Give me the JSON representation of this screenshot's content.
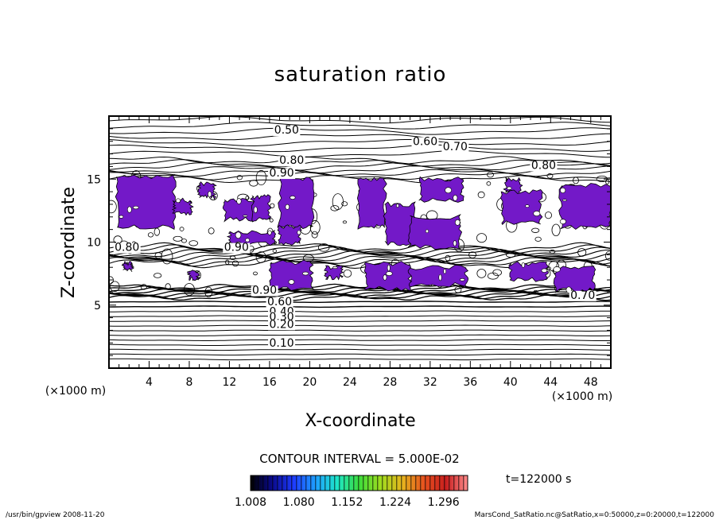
{
  "chart_data": {
    "type": "heatmap",
    "title": "saturation ratio",
    "xlabel": "X-coordinate",
    "ylabel": "Z-coordinate",
    "x_unit_label": "(×1000 m)",
    "y_unit_label": "(×1000 m)",
    "xlim": [
      0,
      50
    ],
    "ylim": [
      0,
      20
    ],
    "x_ticks": [
      {
        "value": 4,
        "label": "4"
      },
      {
        "value": 8,
        "label": "8"
      },
      {
        "value": 12,
        "label": "12"
      },
      {
        "value": 16,
        "label": "16"
      },
      {
        "value": 20,
        "label": "20"
      },
      {
        "value": 24,
        "label": "24"
      },
      {
        "value": 28,
        "label": "28"
      },
      {
        "value": 32,
        "label": "32"
      },
      {
        "value": 36,
        "label": "36"
      },
      {
        "value": 40,
        "label": "40"
      },
      {
        "value": 44,
        "label": "44"
      },
      {
        "value": 48,
        "label": "48"
      }
    ],
    "y_ticks": [
      {
        "value": 5,
        "label": "5"
      },
      {
        "value": 10,
        "label": "10"
      },
      {
        "value": 15,
        "label": "15"
      }
    ],
    "contour_labels": [
      {
        "text": "0.50",
        "x": 17.7,
        "z": 18.6
      },
      {
        "text": "0.60",
        "x": 31.5,
        "z": 17.7
      },
      {
        "text": "0.70",
        "x": 34.5,
        "z": 17.3
      },
      {
        "text": "0.80",
        "x": 18.2,
        "z": 16.2
      },
      {
        "text": "0.90",
        "x": 17.2,
        "z": 15.2
      },
      {
        "text": "0.80",
        "x": 43.3,
        "z": 15.8
      },
      {
        "text": "0.80",
        "x": 1.8,
        "z": 9.3
      },
      {
        "text": "0.90",
        "x": 12.7,
        "z": 9.3
      },
      {
        "text": "0.90",
        "x": 15.5,
        "z": 5.9
      },
      {
        "text": "0.70",
        "x": 47.2,
        "z": 5.5
      },
      {
        "text": "0.60",
        "x": 17.0,
        "z": 5.0
      },
      {
        "text": "0.40",
        "x": 17.2,
        "z": 4.2
      },
      {
        "text": "0.30",
        "x": 17.2,
        "z": 3.8
      },
      {
        "text": "0.20",
        "x": 17.2,
        "z": 3.2
      },
      {
        "text": "0.10",
        "x": 17.2,
        "z": 1.7
      }
    ],
    "contour_interval_text": "CONTOUR INTERVAL = 5.000E-02",
    "time_text": "t=122000 s",
    "colorbar": {
      "min": 1.008,
      "max": 1.332,
      "labels": [
        "1.008",
        "1.080",
        "1.152",
        "1.224",
        "1.296"
      ],
      "tick_values": [
        1.008,
        1.08,
        1.152,
        1.224,
        1.296
      ],
      "colors": [
        "#000000",
        "#0a0a8c",
        "#1e3cff",
        "#1ea0ff",
        "#1ee6c8",
        "#3cdc3c",
        "#a0dc1e",
        "#e6b41e",
        "#e6501e",
        "#c81e1e",
        "#ff8c8c"
      ]
    },
    "supersaturated_color": "#7319c8",
    "supersaturated_regions": [
      {
        "x": [
          0.8,
          6.5
        ],
        "z": [
          11.2,
          15.2
        ]
      },
      {
        "x": [
          6.5,
          8.2
        ],
        "z": [
          12.3,
          13.3
        ]
      },
      {
        "x": [
          9.0,
          10.5
        ],
        "z": [
          13.6,
          14.6
        ]
      },
      {
        "x": [
          11.5,
          14.5
        ],
        "z": [
          11.8,
          13.3
        ]
      },
      {
        "x": [
          12.0,
          16.5
        ],
        "z": [
          9.9,
          10.8
        ]
      },
      {
        "x": [
          14.3,
          16.0
        ],
        "z": [
          11.8,
          13.6
        ]
      },
      {
        "x": [
          17.0,
          20.3
        ],
        "z": [
          11.2,
          15.0
        ]
      },
      {
        "x": [
          17.0,
          19.0
        ],
        "z": [
          9.9,
          11.2
        ]
      },
      {
        "x": [
          24.8,
          27.5
        ],
        "z": [
          11.2,
          15.0
        ]
      },
      {
        "x": [
          27.5,
          30.5
        ],
        "z": [
          9.9,
          13.0
        ]
      },
      {
        "x": [
          30.0,
          35.0
        ],
        "z": [
          9.6,
          12.0
        ]
      },
      {
        "x": [
          31.0,
          35.2
        ],
        "z": [
          13.3,
          15.0
        ]
      },
      {
        "x": [
          39.5,
          41.0
        ],
        "z": [
          14.0,
          15.0
        ]
      },
      {
        "x": [
          39.2,
          43.0
        ],
        "z": [
          11.5,
          14.0
        ]
      },
      {
        "x": [
          45.0,
          50.0
        ],
        "z": [
          11.2,
          14.5
        ]
      },
      {
        "x": [
          16.1,
          20.2
        ],
        "z": [
          6.3,
          8.4
        ]
      },
      {
        "x": [
          21.6,
          23.2
        ],
        "z": [
          7.2,
          8.0
        ]
      },
      {
        "x": [
          25.6,
          30.0
        ],
        "z": [
          6.3,
          8.3
        ]
      },
      {
        "x": [
          30.0,
          35.6
        ],
        "z": [
          6.6,
          8.0
        ]
      },
      {
        "x": [
          40.0,
          43.6
        ],
        "z": [
          7.0,
          8.3
        ]
      },
      {
        "x": [
          44.5,
          48.3
        ],
        "z": [
          6.2,
          8.0
        ]
      },
      {
        "x": [
          1.5,
          2.3
        ],
        "z": [
          7.8,
          8.3
        ]
      },
      {
        "x": [
          8.0,
          8.9
        ],
        "z": [
          7.1,
          7.7
        ]
      }
    ],
    "grid": false
  },
  "footer": {
    "left": "/usr/bin/gpview   2008-11-20",
    "right": "MarsCond_SatRatio.nc@SatRatio,x=0:50000,z=0:20000,t=122000"
  }
}
